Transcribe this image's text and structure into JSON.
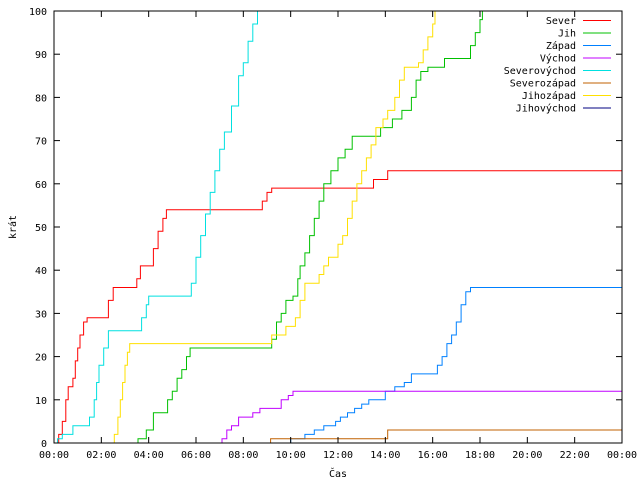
{
  "chart_data": {
    "type": "line",
    "xlabel": "Čas",
    "ylabel": "krát",
    "xlim": [
      0,
      24
    ],
    "ylim": [
      0,
      100
    ],
    "x_ticks": [
      {
        "value": 0,
        "label": "00:00"
      },
      {
        "value": 2,
        "label": "02:00"
      },
      {
        "value": 4,
        "label": "04:00"
      },
      {
        "value": 6,
        "label": "06:00"
      },
      {
        "value": 8,
        "label": "08:00"
      },
      {
        "value": 10,
        "label": "10:00"
      },
      {
        "value": 12,
        "label": "12:00"
      },
      {
        "value": 14,
        "label": "14:00"
      },
      {
        "value": 16,
        "label": "16:00"
      },
      {
        "value": 18,
        "label": "18:00"
      },
      {
        "value": 20,
        "label": "20:00"
      },
      {
        "value": 22,
        "label": "22:00"
      },
      {
        "value": 24,
        "label": "00:00"
      }
    ],
    "y_ticks": [
      0,
      10,
      20,
      30,
      40,
      50,
      60,
      70,
      80,
      90,
      100
    ],
    "grid": false,
    "legend_position": "top-right",
    "series": [
      {
        "name": "Sever",
        "color": "#ff0000",
        "step": true,
        "points": [
          [
            0,
            0
          ],
          [
            0.2,
            2
          ],
          [
            0.35,
            5
          ],
          [
            0.5,
            10
          ],
          [
            0.6,
            13
          ],
          [
            0.8,
            15
          ],
          [
            0.9,
            19
          ],
          [
            1.0,
            22
          ],
          [
            1.1,
            25
          ],
          [
            1.25,
            28
          ],
          [
            1.4,
            29
          ],
          [
            2.3,
            33
          ],
          [
            2.5,
            36
          ],
          [
            3.5,
            38
          ],
          [
            3.65,
            41
          ],
          [
            4.2,
            45
          ],
          [
            4.4,
            49
          ],
          [
            4.6,
            52
          ],
          [
            4.75,
            54
          ],
          [
            8.8,
            56
          ],
          [
            9.0,
            58
          ],
          [
            9.2,
            59
          ],
          [
            12.4,
            59
          ],
          [
            13.5,
            61
          ],
          [
            14.1,
            63
          ],
          [
            24,
            63
          ]
        ]
      },
      {
        "name": "Jih",
        "color": "#00c000",
        "step": true,
        "points": [
          [
            0,
            0
          ],
          [
            3.55,
            1
          ],
          [
            3.9,
            3
          ],
          [
            4.2,
            7
          ],
          [
            4.5,
            7
          ],
          [
            4.8,
            10
          ],
          [
            5.0,
            12
          ],
          [
            5.2,
            15
          ],
          [
            5.4,
            17
          ],
          [
            5.6,
            20
          ],
          [
            5.75,
            22
          ],
          [
            9.2,
            24
          ],
          [
            9.4,
            28
          ],
          [
            9.6,
            30
          ],
          [
            9.8,
            33
          ],
          [
            10.1,
            34
          ],
          [
            10.3,
            38
          ],
          [
            10.4,
            41
          ],
          [
            10.6,
            44
          ],
          [
            10.8,
            48
          ],
          [
            11.0,
            52
          ],
          [
            11.2,
            56
          ],
          [
            11.4,
            60
          ],
          [
            11.7,
            63
          ],
          [
            12.0,
            66
          ],
          [
            12.3,
            68
          ],
          [
            12.6,
            71
          ],
          [
            13.8,
            73
          ],
          [
            14.0,
            73
          ],
          [
            14.3,
            75
          ],
          [
            14.7,
            77
          ],
          [
            15.1,
            80
          ],
          [
            15.3,
            84
          ],
          [
            15.5,
            86
          ],
          [
            15.8,
            87
          ],
          [
            16.5,
            89
          ],
          [
            17.6,
            92
          ],
          [
            17.8,
            95
          ],
          [
            18.0,
            98
          ],
          [
            18.1,
            100
          ],
          [
            24,
            100
          ]
        ]
      },
      {
        "name": "Západ",
        "color": "#0080ff",
        "step": true,
        "points": [
          [
            0,
            0
          ],
          [
            10.0,
            1
          ],
          [
            10.6,
            2
          ],
          [
            11.0,
            3
          ],
          [
            11.4,
            4
          ],
          [
            11.9,
            5
          ],
          [
            12.1,
            6
          ],
          [
            12.4,
            7
          ],
          [
            12.7,
            8
          ],
          [
            13.0,
            9
          ],
          [
            13.3,
            10
          ],
          [
            13.6,
            10
          ],
          [
            14.0,
            12
          ],
          [
            14.4,
            13
          ],
          [
            14.8,
            14
          ],
          [
            15.1,
            16
          ],
          [
            16.2,
            18
          ],
          [
            16.4,
            20
          ],
          [
            16.6,
            23
          ],
          [
            16.8,
            25
          ],
          [
            17.0,
            28
          ],
          [
            17.2,
            32
          ],
          [
            17.4,
            35
          ],
          [
            17.6,
            36
          ],
          [
            24,
            36
          ]
        ]
      },
      {
        "name": "Východ",
        "color": "#c000ff",
        "step": true,
        "points": [
          [
            0,
            0
          ],
          [
            7.1,
            1
          ],
          [
            7.3,
            3
          ],
          [
            7.5,
            4
          ],
          [
            7.8,
            6
          ],
          [
            8.4,
            7
          ],
          [
            8.7,
            8
          ],
          [
            9.6,
            10
          ],
          [
            9.9,
            11
          ],
          [
            10.1,
            12
          ],
          [
            24,
            12
          ]
        ]
      },
      {
        "name": "Severovýchod",
        "color": "#00e0e0",
        "step": true,
        "points": [
          [
            0,
            0
          ],
          [
            0.15,
            1
          ],
          [
            0.35,
            2
          ],
          [
            0.8,
            4
          ],
          [
            1.5,
            6
          ],
          [
            1.7,
            10
          ],
          [
            1.8,
            14
          ],
          [
            1.9,
            18
          ],
          [
            2.1,
            22
          ],
          [
            2.3,
            26
          ],
          [
            3.7,
            29
          ],
          [
            3.9,
            32
          ],
          [
            4.0,
            34
          ],
          [
            5.6,
            34
          ],
          [
            5.8,
            37
          ],
          [
            6.0,
            43
          ],
          [
            6.2,
            48
          ],
          [
            6.4,
            53
          ],
          [
            6.6,
            58
          ],
          [
            6.8,
            63
          ],
          [
            7.0,
            68
          ],
          [
            7.2,
            72
          ],
          [
            7.5,
            78
          ],
          [
            7.8,
            85
          ],
          [
            8.0,
            88
          ],
          [
            8.2,
            93
          ],
          [
            8.4,
            97
          ],
          [
            8.6,
            100
          ],
          [
            24,
            100
          ]
        ]
      },
      {
        "name": "Severozápad",
        "color": "#c06000",
        "step": true,
        "points": [
          [
            0,
            0
          ],
          [
            9.15,
            1
          ],
          [
            14.1,
            3
          ],
          [
            24,
            3
          ]
        ]
      },
      {
        "name": "Jihozápad",
        "color": "#ffe000",
        "step": true,
        "points": [
          [
            0,
            0
          ],
          [
            2.55,
            2
          ],
          [
            2.7,
            6
          ],
          [
            2.8,
            10
          ],
          [
            2.9,
            14
          ],
          [
            3.0,
            18
          ],
          [
            3.1,
            21
          ],
          [
            3.2,
            23
          ],
          [
            9.2,
            25
          ],
          [
            9.6,
            25
          ],
          [
            9.8,
            27
          ],
          [
            10.2,
            29
          ],
          [
            10.4,
            33
          ],
          [
            10.6,
            37
          ],
          [
            11.2,
            39
          ],
          [
            11.4,
            41
          ],
          [
            11.6,
            43
          ],
          [
            12.0,
            46
          ],
          [
            12.2,
            48
          ],
          [
            12.4,
            52
          ],
          [
            12.6,
            56
          ],
          [
            12.8,
            60
          ],
          [
            13.0,
            63
          ],
          [
            13.2,
            66
          ],
          [
            13.4,
            69
          ],
          [
            13.6,
            73
          ],
          [
            13.9,
            75
          ],
          [
            14.1,
            77
          ],
          [
            14.4,
            80
          ],
          [
            14.6,
            84
          ],
          [
            14.8,
            87
          ],
          [
            15.4,
            88
          ],
          [
            15.6,
            91
          ],
          [
            15.8,
            94
          ],
          [
            16.0,
            97
          ],
          [
            16.1,
            100
          ],
          [
            24,
            100
          ]
        ]
      },
      {
        "name": "Jihovýchod",
        "color": "#000080",
        "step": true,
        "points": []
      }
    ]
  }
}
